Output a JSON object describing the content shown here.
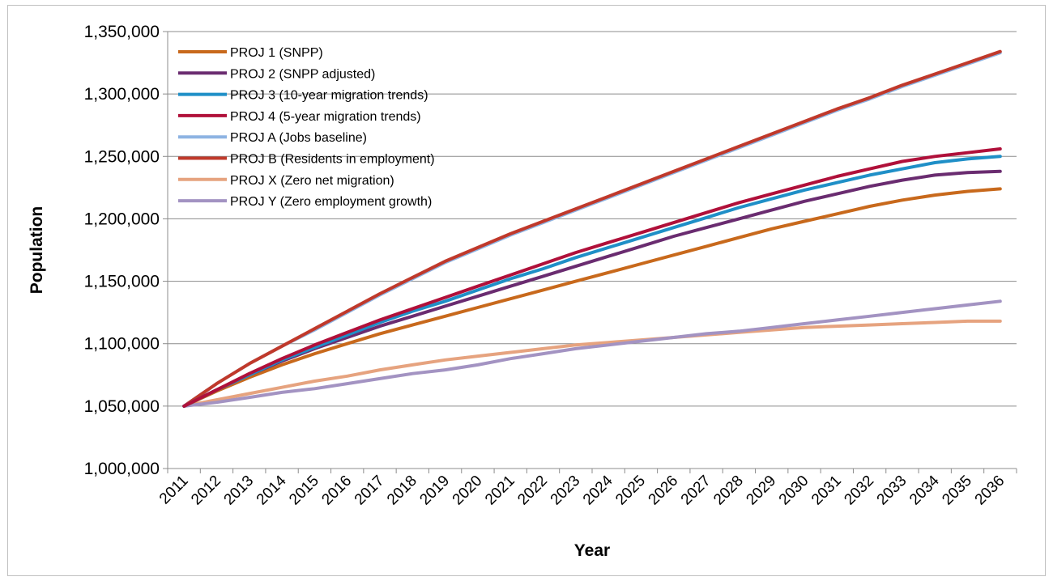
{
  "chart_data": {
    "type": "line",
    "xlabel": "Year",
    "ylabel": "Population",
    "ylim": [
      1000000,
      1350000
    ],
    "y_ticks": [
      "1,000,000",
      "1,050,000",
      "1,100,000",
      "1,150,000",
      "1,200,000",
      "1,250,000",
      "1,300,000",
      "1,350,000"
    ],
    "grid": "horizontal",
    "legend": "top-left",
    "x": [
      "2011",
      "2012",
      "2013",
      "2014",
      "2015",
      "2016",
      "2017",
      "2018",
      "2019",
      "2020",
      "2021",
      "2022",
      "2023",
      "2024",
      "2025",
      "2026",
      "2027",
      "2028",
      "2029",
      "2030",
      "2031",
      "2032",
      "2033",
      "2034",
      "2035",
      "2036"
    ],
    "series": [
      {
        "name": "PROJ A (Jobs baseline)",
        "color": "#8db3e2",
        "values": [
          1050000,
          1068000,
          1084000,
          1098000,
          1111000,
          1125000,
          1139000,
          1152000,
          1165000,
          1176000,
          1187000,
          1197000,
          1207000,
          1217000,
          1227000,
          1237000,
          1247000,
          1257000,
          1267000,
          1277000,
          1287000,
          1296000,
          1306000,
          1315000,
          1324000,
          1333000
        ]
      },
      {
        "name": "PROJ B (Residents in employment)",
        "color": "#c0392b",
        "values": [
          1050000,
          1068000,
          1084000,
          1098000,
          1112000,
          1126000,
          1140000,
          1153000,
          1166000,
          1177000,
          1188000,
          1198000,
          1208000,
          1218000,
          1228000,
          1238000,
          1248000,
          1258000,
          1268000,
          1278000,
          1288000,
          1297000,
          1307000,
          1316000,
          1325000,
          1334000
        ]
      },
      {
        "name": "PROJ X (Zero net migration)",
        "color": "#e6a37f",
        "values": [
          1050000,
          1055000,
          1060000,
          1065000,
          1070000,
          1074000,
          1079000,
          1083000,
          1087000,
          1090000,
          1093000,
          1096000,
          1099000,
          1101000,
          1103000,
          1105000,
          1107000,
          1109000,
          1111000,
          1113000,
          1114000,
          1115000,
          1116000,
          1117000,
          1118000,
          1118000
        ]
      },
      {
        "name": "PROJ Y (Zero employment growth)",
        "color": "#a393c2",
        "values": [
          1050000,
          1053000,
          1057000,
          1061000,
          1064000,
          1068000,
          1072000,
          1076000,
          1079000,
          1083000,
          1088000,
          1092000,
          1096000,
          1099000,
          1102000,
          1105000,
          1108000,
          1110000,
          1113000,
          1116000,
          1119000,
          1122000,
          1125000,
          1128000,
          1131000,
          1134000
        ]
      },
      {
        "name": "PROJ 1 (SNPP)",
        "color": "#c8691c",
        "values": [
          1050000,
          1062000,
          1073000,
          1083000,
          1092000,
          1100000,
          1108000,
          1115000,
          1122000,
          1129000,
          1136000,
          1143000,
          1150000,
          1157000,
          1164000,
          1171000,
          1178000,
          1185000,
          1192000,
          1198000,
          1204000,
          1210000,
          1215000,
          1219000,
          1222000,
          1224000
        ]
      },
      {
        "name": "PROJ 2 (SNPP adjusted)",
        "color": "#6a2c70",
        "values": [
          1050000,
          1063000,
          1075000,
          1086000,
          1096000,
          1105000,
          1114000,
          1122000,
          1130000,
          1138000,
          1146000,
          1154000,
          1162000,
          1170000,
          1178000,
          1186000,
          1193000,
          1200000,
          1207000,
          1214000,
          1220000,
          1226000,
          1231000,
          1235000,
          1237000,
          1238000
        ]
      },
      {
        "name": "PROJ 3 (10-year migration trends)",
        "color": "#1f8fc7",
        "values": [
          1050000,
          1063000,
          1075000,
          1087000,
          1097000,
          1107000,
          1117000,
          1126000,
          1134000,
          1143000,
          1152000,
          1160000,
          1169000,
          1177000,
          1185000,
          1193000,
          1201000,
          1209000,
          1216000,
          1223000,
          1229000,
          1235000,
          1240000,
          1245000,
          1248000,
          1250000
        ]
      },
      {
        "name": "PROJ 4 (5-year migration trends)",
        "color": "#b0103a",
        "values": [
          1050000,
          1063000,
          1076000,
          1088000,
          1099000,
          1109000,
          1119000,
          1128000,
          1137000,
          1146000,
          1155000,
          1164000,
          1173000,
          1181000,
          1189000,
          1197000,
          1205000,
          1213000,
          1220000,
          1227000,
          1234000,
          1240000,
          1246000,
          1250000,
          1253000,
          1256000
        ]
      }
    ],
    "legend_order": [
      4,
      5,
      6,
      7,
      0,
      1,
      2,
      3
    ]
  }
}
